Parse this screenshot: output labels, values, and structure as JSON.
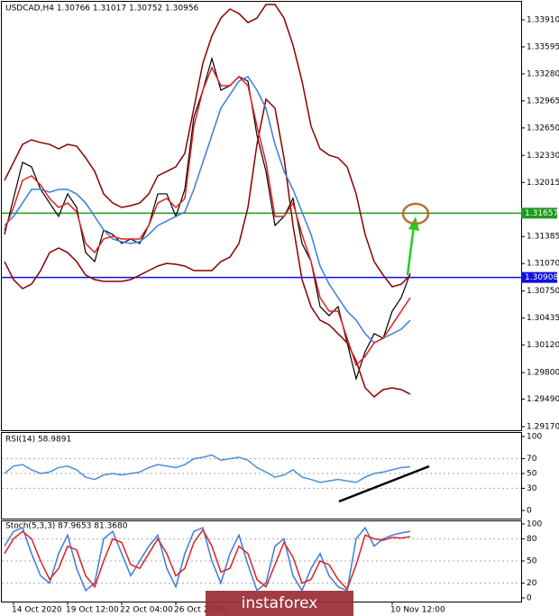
{
  "chart_data": [
    {
      "type": "line",
      "title": "USDCAD,H4 1.30766 1.31017 1.30752 1.30956",
      "ylim": [
        1.29128,
        1.3412
      ],
      "yticks": [
        {
          "value": 1.3391,
          "label": "1.33910"
        },
        1.33595,
        {
          "value": 1.3328,
          "label": "1.33280"
        },
        1.32965,
        {
          "value": 1.3265,
          "label": "1.32650"
        },
        {
          "value": 1.3233,
          "label": "1.32330"
        },
        1.32015,
        1.31385,
        {
          "value": 1.3107,
          "label": "1.31070"
        },
        {
          "value": 1.3075,
          "label": "1.30750"
        },
        1.30435,
        {
          "value": 1.3012,
          "label": "1.30120"
        },
        {
          "value": 1.298,
          "label": "1.29800"
        },
        {
          "value": 1.2949,
          "label": "1.29490"
        },
        {
          "value": 1.2917,
          "label": "1.29170"
        }
      ],
      "hlines": [
        {
          "value": 1.31657,
          "color": "#1f9a1f"
        },
        {
          "value": 1.30908,
          "color": "#1010e0"
        }
      ],
      "series": [
        {
          "color": "#000000",
          "values": [
            1.31409,
            1.31829,
            1.32249,
            1.32197,
            1.31934,
            1.31776,
            1.31619,
            1.31882,
            1.31724,
            1.31198,
            1.31093,
            1.31461,
            1.31409,
            1.31304,
            1.31356,
            1.31304,
            1.31514,
            1.31882,
            1.31882,
            1.31619,
            1.31934,
            1.32775,
            1.3309,
            1.33458,
            1.3309,
            1.33143,
            1.33248,
            1.33195,
            1.32565,
            1.32144,
            1.31514,
            1.31619,
            1.31829,
            1.31304,
            1.31093,
            1.30568,
            1.30463,
            1.30568,
            1.30147,
            1.29727,
            1.30042,
            1.30253,
            1.302,
            1.30515,
            1.30673,
            1.30956
          ]
        },
        {
          "color": "#8b0000",
          "values": [
            1.32039,
            1.32249,
            1.32459,
            1.32512,
            1.3248,
            1.32459,
            1.32407,
            1.32459,
            1.32438,
            1.32302,
            1.32144,
            1.31881,
            1.31776,
            1.31724,
            1.31745,
            1.31776,
            1.31881,
            1.32092,
            1.32144,
            1.32197,
            1.32354,
            1.3288,
            1.33405,
            1.33721,
            1.33931,
            1.34036,
            1.33983,
            1.33878,
            1.33931,
            1.34088,
            1.34088,
            1.33931,
            1.33616,
            1.33195,
            1.3267,
            1.32407,
            1.32333,
            1.32302,
            1.32197,
            1.31881,
            1.31408,
            1.31093,
            1.30935,
            1.30799,
            1.3083,
            1.30935
          ]
        },
        {
          "color": "#8b0000",
          "values": [
            1.31093,
            1.30883,
            1.30778,
            1.3083,
            1.30988,
            1.31198,
            1.31251,
            1.31198,
            1.31093,
            1.30935,
            1.30883,
            1.30862,
            1.30862,
            1.30862,
            1.30883,
            1.30935,
            1.30988,
            1.31041,
            1.31072,
            1.31062,
            1.31041,
            1.30988,
            1.30988,
            1.30988,
            1.31093,
            1.31146,
            1.31303,
            1.31724,
            1.32459,
            1.32985,
            1.3288,
            1.32302,
            1.31514,
            1.30883,
            1.30568,
            1.3041,
            1.30357,
            1.30252,
            1.30147,
            1.29937,
            1.29622,
            1.29517,
            1.29601,
            1.29622,
            1.29601,
            1.29548
          ]
        },
        {
          "color": "#3b7ddd",
          "values": [
            1.31514,
            1.31619,
            1.31776,
            1.31934,
            1.31934,
            1.31902,
            1.31934,
            1.31934,
            1.31881,
            1.31776,
            1.31619,
            1.31461,
            1.31356,
            1.31324,
            1.31303,
            1.31324,
            1.31408,
            1.31514,
            1.31566,
            1.31619,
            1.31671,
            1.31934,
            1.32249,
            1.32565,
            1.3288,
            1.33037,
            1.33195,
            1.33248,
            1.3309,
            1.3288,
            1.32459,
            1.32144,
            1.31934,
            1.31671,
            1.31408,
            1.31041,
            1.3083,
            1.30673,
            1.30515,
            1.3041,
            1.30252,
            1.30147,
            1.302,
            1.30252,
            1.30305,
            1.3041
          ]
        },
        {
          "color": "#e02020",
          "values": [
            1.31461,
            1.31724,
            1.32039,
            1.32092,
            1.31986,
            1.31829,
            1.31724,
            1.31776,
            1.31671,
            1.31303,
            1.31198,
            1.31356,
            1.31387,
            1.31356,
            1.31356,
            1.31356,
            1.31514,
            1.31776,
            1.31829,
            1.31724,
            1.31829,
            1.3267,
            1.3309,
            1.33353,
            1.33143,
            1.33143,
            1.33248,
            1.33143,
            1.3267,
            1.32249,
            1.31619,
            1.31619,
            1.31776,
            1.31408,
            1.31093,
            1.30673,
            1.30515,
            1.30515,
            1.302,
            1.29885,
            1.2999,
            1.30147,
            1.302,
            1.30357,
            1.30515,
            1.30673
          ]
        }
      ]
    },
    {
      "type": "line",
      "title": "RSI(14) 58.9891",
      "ylim": [
        0,
        100
      ],
      "yticks": [
        100,
        70,
        50,
        30,
        0
      ],
      "series": [
        {
          "color": "#4a8fdc",
          "values": [
            50,
            60,
            62,
            55,
            50,
            52,
            58,
            60,
            55,
            45,
            42,
            48,
            50,
            48,
            50,
            52,
            58,
            62,
            60,
            58,
            62,
            70,
            72,
            75,
            68,
            70,
            72,
            68,
            58,
            52,
            45,
            48,
            55,
            45,
            42,
            38,
            40,
            42,
            40,
            38,
            45,
            50,
            52,
            55,
            58,
            59
          ]
        }
      ]
    },
    {
      "type": "line",
      "title": "Stoch(5,3,3) 87.9653 81.3680",
      "ylim": [
        0,
        100
      ],
      "yticks": [
        100,
        80,
        50,
        20,
        0
      ],
      "categories": [
        null,
        "14 Oct 2020",
        null,
        null,
        null,
        null,
        null,
        "19 Oct 12:00",
        null,
        null,
        null,
        null,
        null,
        "22 Oct 04:00",
        null,
        null,
        null,
        null,
        null,
        "26 Oct 20:00",
        null,
        null,
        null,
        null,
        null,
        null,
        null,
        null,
        null,
        null,
        null,
        null,
        null,
        null,
        null,
        null,
        null,
        null,
        null,
        null,
        null,
        null,
        null,
        "10 Nov 12:00",
        null,
        null
      ],
      "series": [
        {
          "color": "#3b7ddd",
          "values": [
            70,
            90,
            95,
            60,
            30,
            20,
            60,
            85,
            40,
            10,
            20,
            80,
            90,
            60,
            30,
            50,
            70,
            85,
            40,
            15,
            60,
            90,
            95,
            50,
            20,
            60,
            85,
            45,
            10,
            20,
            70,
            80,
            30,
            10,
            40,
            60,
            30,
            15,
            10,
            80,
            95,
            70,
            80,
            85,
            88,
            90
          ]
        },
        {
          "color": "#e02020",
          "values": [
            60,
            80,
            90,
            80,
            50,
            25,
            40,
            70,
            65,
            30,
            15,
            50,
            80,
            75,
            45,
            40,
            60,
            80,
            60,
            30,
            40,
            75,
            92,
            70,
            35,
            40,
            70,
            60,
            25,
            15,
            45,
            75,
            55,
            20,
            25,
            50,
            45,
            25,
            12,
            45,
            85,
            80,
            78,
            82,
            81,
            83
          ]
        }
      ]
    }
  ],
  "watermark": "instaforex"
}
